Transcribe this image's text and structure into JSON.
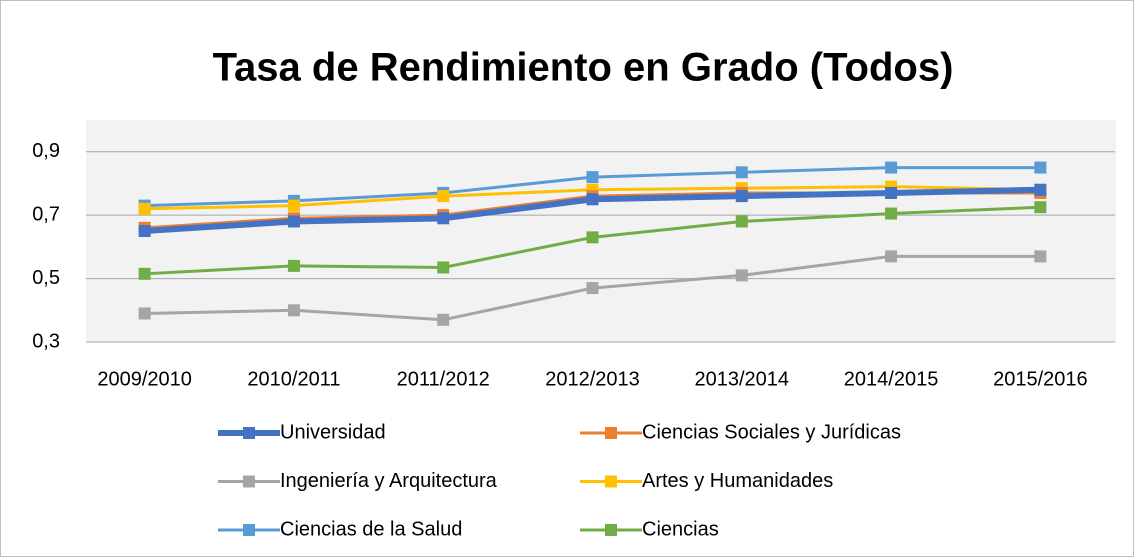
{
  "chart_data": {
    "type": "line",
    "title": "Tasa de Rendimiento en Grado (Todos)",
    "categories": [
      "2009/2010",
      "2010/2011",
      "2011/2012",
      "2012/2013",
      "2013/2014",
      "2014/2015",
      "2015/2016"
    ],
    "series": [
      {
        "name": "Universidad",
        "color": "#4472c4",
        "values": [
          0.65,
          0.68,
          0.69,
          0.75,
          0.76,
          0.77,
          0.78
        ]
      },
      {
        "name": "Ciencias Sociales y Jurídicas",
        "color": "#ed7d31",
        "values": [
          0.66,
          0.69,
          0.7,
          0.76,
          0.77,
          0.77,
          0.77
        ]
      },
      {
        "name": "Ingeniería y Arquitectura",
        "color": "#a5a5a5",
        "values": [
          0.39,
          0.4,
          0.37,
          0.47,
          0.51,
          0.57,
          0.57
        ]
      },
      {
        "name": "Artes y Humanidades",
        "color": "#ffc000",
        "values": [
          0.72,
          0.73,
          0.76,
          0.78,
          0.785,
          0.79,
          0.78
        ]
      },
      {
        "name": "Ciencias de la Salud",
        "color": "#5b9bd5",
        "values": [
          0.73,
          0.745,
          0.77,
          0.82,
          0.835,
          0.85,
          0.85
        ]
      },
      {
        "name": "Ciencias",
        "color": "#70ad47",
        "values": [
          0.515,
          0.54,
          0.535,
          0.63,
          0.68,
          0.705,
          0.725
        ]
      }
    ],
    "ylim": [
      0.3,
      1.0
    ],
    "yticks": [
      {
        "value": 0.3,
        "label": "0,3"
      },
      {
        "value": 0.5,
        "label": "0,5"
      },
      {
        "value": 0.7,
        "label": "0,7"
      },
      {
        "value": 0.9,
        "label": "0,9"
      }
    ],
    "grid": true,
    "legend": "bottom"
  }
}
